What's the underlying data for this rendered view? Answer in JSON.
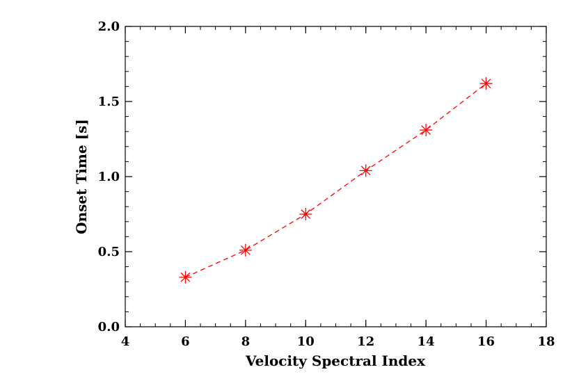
{
  "chart_data": {
    "type": "line",
    "title": "",
    "xlabel": "Velocity Spectral Index",
    "ylabel": "Onset Time [s]",
    "xlim": [
      4,
      18
    ],
    "ylim": [
      0.0,
      2.0
    ],
    "x_ticks": [
      "4",
      "6",
      "8",
      "10",
      "12",
      "14",
      "16",
      "18"
    ],
    "y_ticks": [
      "0.0",
      "0.5",
      "1.0",
      "1.5",
      "2.0"
    ],
    "x_minor_step": 0.5,
    "y_minor_step": 0.1,
    "grid": false,
    "series": [
      {
        "x": [
          6,
          8,
          10,
          12,
          14,
          16
        ],
        "y": [
          0.33,
          0.51,
          0.75,
          1.04,
          1.31,
          1.62
        ],
        "color": "#ff0000",
        "marker": "asterisk",
        "line_style": "dashed"
      }
    ]
  }
}
